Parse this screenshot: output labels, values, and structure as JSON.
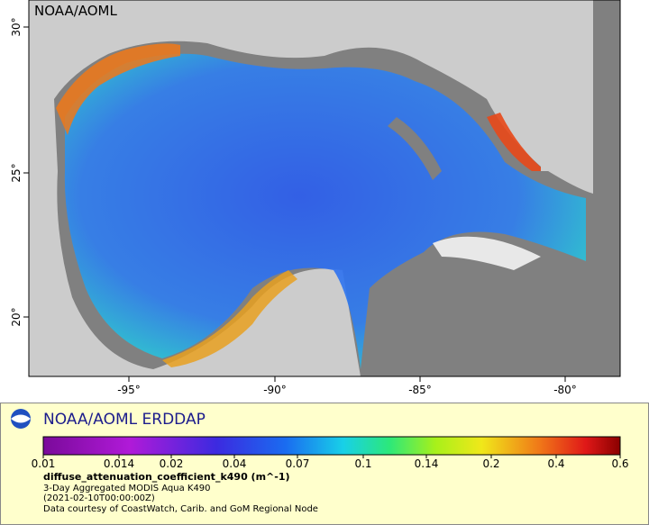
{
  "map": {
    "watermark": "NOAA/AOML",
    "lat_labels": [
      "30°",
      "25°",
      "20°"
    ],
    "lon_labels": [
      "-95°",
      "-90°",
      "-85°",
      "-80°"
    ]
  },
  "legend": {
    "title": "NOAA/AOML ERDDAP",
    "colorbar_ticks": [
      "0.01",
      "0.014",
      "0.02",
      "0.04",
      "0.07",
      "0.1",
      "0.14",
      "0.2",
      "0.4",
      "0.6"
    ],
    "variable": "diffuse_attenuation_coefficient_k490 (m^-1)",
    "dataset": "3-Day Aggregated MODIS Aqua K490",
    "time": "(2021-02-10T00:00:00Z)",
    "credit": "Data courtesy of CoastWatch, Carib. and GoM Regional Node"
  }
}
